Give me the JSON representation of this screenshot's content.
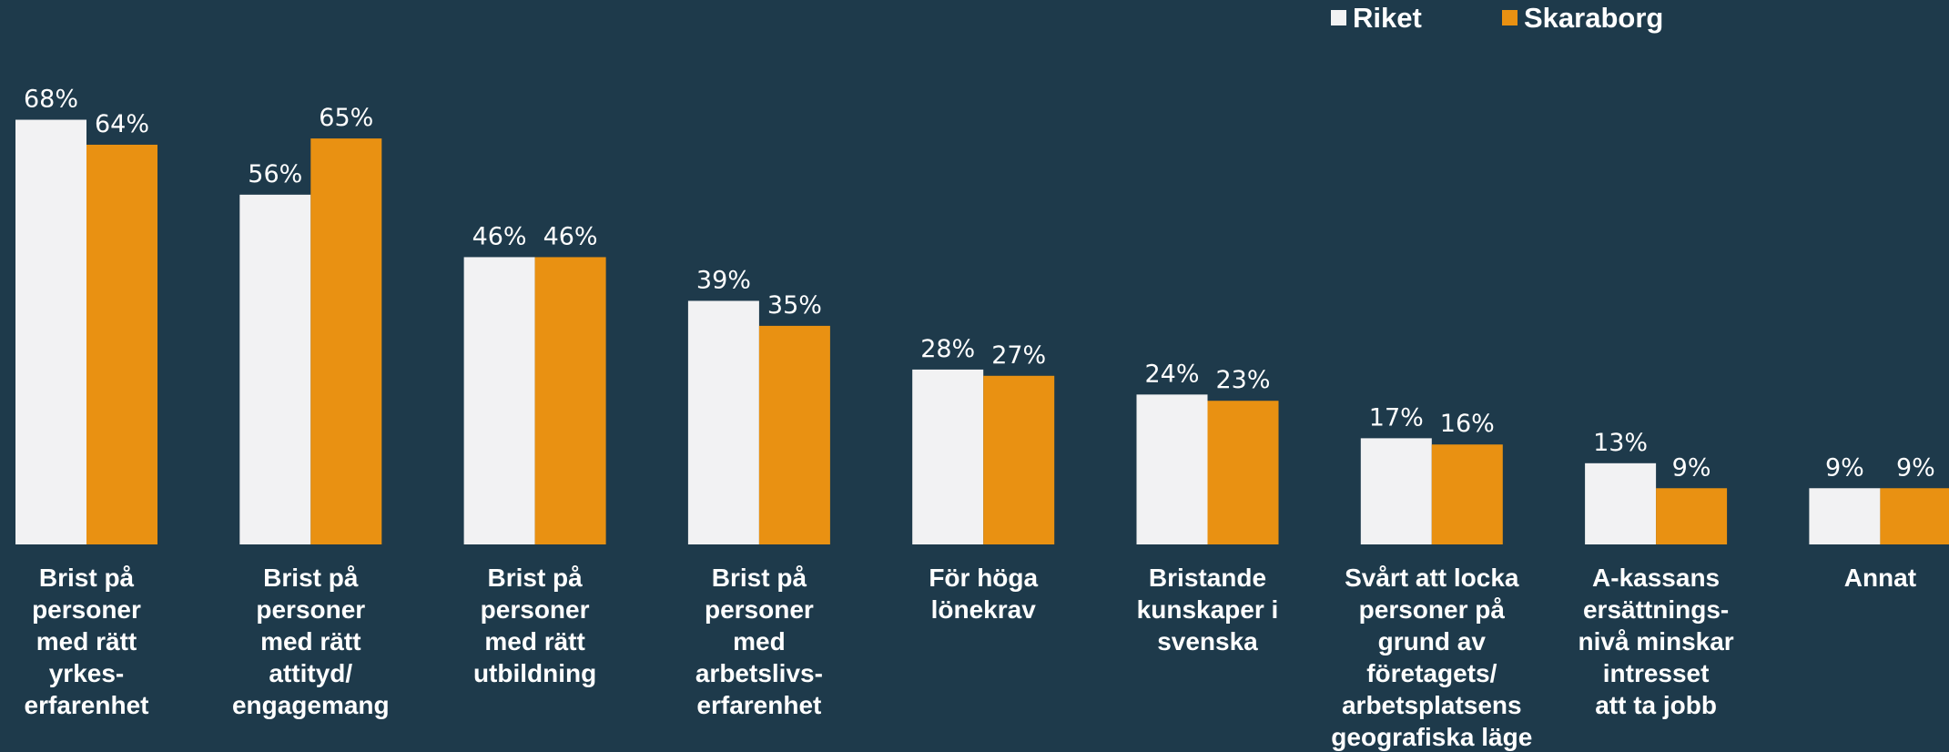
{
  "chart_data": {
    "type": "bar",
    "title": "",
    "xlabel": "",
    "ylabel": "",
    "ylim": [
      0,
      70
    ],
    "grid": false,
    "legend_position": "top-right",
    "categories": [
      "Brist på personer med rätt yrkes- erfarenhet",
      "Brist på personer med rätt attityd/ engagemang",
      "Brist på personer med rätt utbildning",
      "Brist på personer med arbetslivs- erfarenhet",
      "För höga lönekrav",
      "Bristande kunskaper i svenska",
      "Svårt att locka personer på grund av företagets/ arbetsplatsens geografiska läge",
      "A-kassans ersättnings- nivå minskar intresset att ta jobb",
      "Annat"
    ],
    "category_lines": [
      [
        "Brist på",
        "personer",
        "med rätt",
        "yrkes-",
        "erfarenhet"
      ],
      [
        "Brist på",
        "personer",
        "med rätt",
        "attityd/",
        "engagemang"
      ],
      [
        "Brist på",
        "personer",
        "med rätt",
        "utbildning"
      ],
      [
        "Brist på",
        "personer",
        "med",
        "arbetslivs-",
        "erfarenhet"
      ],
      [
        "För höga",
        "lönekrav"
      ],
      [
        "Bristande",
        "kunskaper i",
        "svenska"
      ],
      [
        "Svårt att locka",
        "personer på",
        "grund av",
        "företagets/",
        "arbetsplatsens",
        "geografiska läge"
      ],
      [
        "A-kassans",
        "ersättnings-",
        "nivå minskar",
        "intresset",
        "att ta jobb"
      ],
      [
        "Annat"
      ]
    ],
    "series": [
      {
        "name": "Riket",
        "color": "#f2f2f3",
        "values": [
          68,
          56,
          46,
          39,
          28,
          24,
          17,
          13,
          9
        ]
      },
      {
        "name": "Skaraborg",
        "color": "#e99112",
        "values": [
          64,
          65,
          46,
          35,
          27,
          23,
          16,
          9,
          9
        ]
      }
    ],
    "value_suffix": "%"
  },
  "colors": {
    "background": "#1e3a4b",
    "text": "#ffffff"
  }
}
